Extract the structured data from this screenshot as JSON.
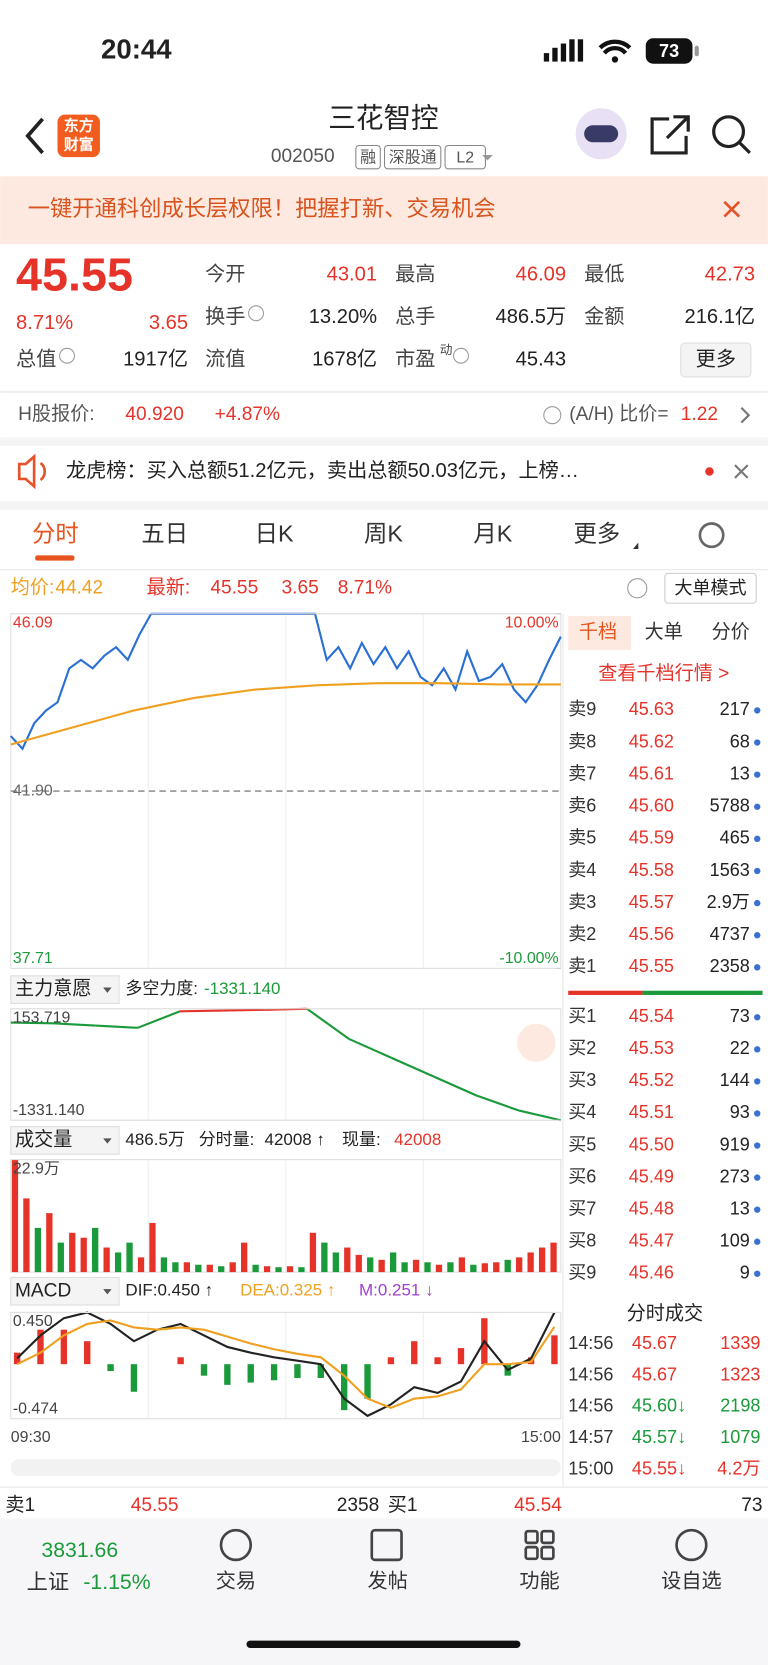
{
  "status": {
    "time": "20:44",
    "battery": "73"
  },
  "header": {
    "logo": [
      "东方",
      "财富"
    ],
    "title": "三花智控",
    "code": "002050",
    "tags": [
      "融",
      "深股通",
      "L2"
    ]
  },
  "banner": {
    "text": "一键开通科创成长层权限！把握打新、交易机会"
  },
  "quote": {
    "price": "45.55",
    "pct": "8.71%",
    "chg": "3.65",
    "more": "更多",
    "fields": [
      {
        "label": "今开",
        "value": "43.01",
        "color": "#e5332a"
      },
      {
        "label": "最高",
        "value": "46.09",
        "color": "#e5332a"
      },
      {
        "label": "最低",
        "value": "42.73",
        "color": "#e5332a"
      },
      {
        "label": "换手",
        "value": "13.20%"
      },
      {
        "label": "总手",
        "value": "486.5万"
      },
      {
        "label": "金额",
        "value": "216.1亿"
      },
      {
        "label": "总值",
        "value": "1917亿"
      },
      {
        "label": "流值",
        "value": "1678亿"
      },
      {
        "label": "市盈",
        "sup": "动",
        "value": "45.43"
      }
    ]
  },
  "hshare": {
    "label": "H股报价:",
    "price": "40.920",
    "pct": "+4.87%",
    "ratio_label": "(A/H) 比价=",
    "ratio": "1.22"
  },
  "news": {
    "text": "龙虎榜：买入总额51.2亿元，卖出总额50.03亿元，上榜…"
  },
  "tabs": [
    "分时",
    "五日",
    "日K",
    "周K",
    "月K",
    "更多"
  ],
  "chart_info": {
    "avg": "44.42",
    "last": "45.55",
    "chg": "3.65",
    "pct": "8.71%",
    "mode": "大单模式"
  },
  "chart_data": [
    {
      "type": "line",
      "ylim": [
        37.71,
        46.09
      ],
      "yticks": [
        46.09,
        {
          "value": 41.9,
          "label": "41.90"
        },
        37.71
      ],
      "y2lim": [
        -10,
        10
      ],
      "y2ticks": [
        {
          "value": 10,
          "label": "10.00%"
        },
        {
          "value": -10,
          "label": "-10.00%"
        }
      ],
      "xlabels": [
        "09:30",
        "15:00"
      ],
      "series": [
        {
          "name": "最新:",
          "color": "#2a6fd4",
          "values": [
            43.2,
            42.9,
            43.5,
            43.8,
            44.0,
            44.8,
            45.0,
            44.8,
            45.1,
            45.3,
            45.0,
            45.6,
            46.09,
            46.09,
            46.09,
            46.09,
            46.09,
            46.09,
            46.09,
            46.09,
            46.09,
            46.09,
            46.09,
            46.09,
            46.09,
            46.09,
            46.09,
            45.0,
            45.3,
            44.8,
            45.4,
            44.9,
            45.3,
            44.8,
            45.2,
            44.6,
            44.4,
            44.8,
            44.3,
            45.2,
            44.5,
            44.6,
            44.9,
            44.3,
            44.0,
            44.4,
            45.0,
            45.55
          ]
        },
        {
          "name": "均价:",
          "color": "#f0a020",
          "values": [
            43.0,
            43.4,
            43.8,
            44.1,
            44.3,
            44.4,
            44.45,
            44.45,
            44.42,
            44.42
          ]
        }
      ]
    },
    {
      "type": "line",
      "title": "主力意愿",
      "label": "多空力度:",
      "latest": "-1331.140",
      "ylim": [
        -1331.14,
        153.719
      ],
      "yticks": [
        153.719,
        {
          "value": -1331.14,
          "label": "-1331.140"
        }
      ],
      "series": [
        {
          "color": "#1a9a3a",
          "up_color": "#e5332a",
          "values": [
            -30,
            -40,
            -70,
            -100,
            120,
            130,
            140,
            153.719,
            -250,
            -500,
            -750,
            -1000,
            -1200,
            -1331.14
          ]
        }
      ]
    },
    {
      "type": "bar",
      "title": "成交量",
      "total": "486.5万",
      "label": "分时量:",
      "minute": "42008 ↑",
      "now_label": "现量:",
      "now": "42008",
      "ylim": [
        0,
        229000
      ],
      "yticks": [
        {
          "value": 229000,
          "label": "22.9万"
        }
      ],
      "up_color": "#e5332a",
      "down_color": "#1a9a3a",
      "values": [
        229000,
        150000,
        90000,
        120000,
        60000,
        80000,
        70000,
        90000,
        50000,
        40000,
        60000,
        30000,
        100000,
        30000,
        20000,
        20000,
        15000,
        15000,
        12000,
        20000,
        60000,
        15000,
        12000,
        10000,
        12000,
        10000,
        80000,
        60000,
        40000,
        50000,
        35000,
        30000,
        25000,
        40000,
        20000,
        25000,
        20000,
        15000,
        20000,
        30000,
        15000,
        18000,
        20000,
        25000,
        30000,
        40000,
        50000,
        60000
      ],
      "rising": [
        true,
        true,
        false,
        true,
        false,
        true,
        true,
        false,
        true,
        false,
        false,
        true,
        true,
        false,
        false,
        true,
        false,
        true,
        false,
        true,
        true,
        false,
        true,
        false,
        true,
        false,
        true,
        false,
        false,
        true,
        true,
        false,
        true,
        false,
        false,
        true,
        false,
        true,
        false,
        true,
        false,
        true,
        true,
        false,
        true,
        true,
        true,
        true
      ]
    },
    {
      "type": "macd",
      "title": "MACD",
      "ylim": [
        -0.474,
        0.45
      ],
      "yticks": [
        {
          "value": 0.45,
          "label": "0.450"
        },
        {
          "value": -0.474,
          "label": "-0.474"
        }
      ],
      "up_color": "#e5332a",
      "down_color": "#1a9a3a",
      "series": [
        {
          "name": "DIF:0.450 ↑",
          "color": "#222222",
          "values": [
            0.05,
            0.25,
            0.4,
            0.45,
            0.35,
            0.2,
            0.3,
            0.35,
            0.25,
            0.15,
            0.1,
            0.06,
            0.03,
            0.0,
            -0.3,
            -0.45,
            -0.35,
            -0.2,
            -0.25,
            -0.15,
            0.2,
            -0.05,
            0.05,
            0.45
          ]
        },
        {
          "name": "DEA:0.325 ↑",
          "color": "#f0a020",
          "values": [
            0.0,
            0.1,
            0.25,
            0.35,
            0.38,
            0.32,
            0.3,
            0.32,
            0.3,
            0.24,
            0.18,
            0.13,
            0.09,
            0.06,
            -0.1,
            -0.3,
            -0.38,
            -0.3,
            -0.28,
            -0.22,
            0.0,
            0.0,
            0.02,
            0.325
          ]
        },
        {
          "name": "M:0.251 ↓",
          "color": "#a040d0",
          "bars": true,
          "values": [
            0.1,
            0.3,
            0.3,
            0.2,
            -0.06,
            -0.24,
            0.0,
            0.06,
            -0.1,
            -0.18,
            -0.16,
            -0.14,
            -0.12,
            -0.12,
            -0.4,
            -0.3,
            0.06,
            0.2,
            0.06,
            0.14,
            0.4,
            -0.1,
            0.06,
            0.251
          ]
        }
      ]
    }
  ],
  "book": {
    "tabs": [
      "千档",
      "大单",
      "分价"
    ],
    "link": "查看千档行情 >",
    "sells": [
      [
        "卖9",
        "45.63",
        "217"
      ],
      [
        "卖8",
        "45.62",
        "68"
      ],
      [
        "卖7",
        "45.61",
        "13"
      ],
      [
        "卖6",
        "45.60",
        "5788"
      ],
      [
        "卖5",
        "45.59",
        "465"
      ],
      [
        "卖4",
        "45.58",
        "1563"
      ],
      [
        "卖3",
        "45.57",
        "2.9万"
      ],
      [
        "卖2",
        "45.56",
        "4737"
      ],
      [
        "卖1",
        "45.55",
        "2358"
      ]
    ],
    "buys": [
      [
        "买1",
        "45.54",
        "73"
      ],
      [
        "买2",
        "45.53",
        "22"
      ],
      [
        "买3",
        "45.52",
        "144"
      ],
      [
        "买4",
        "45.51",
        "93"
      ],
      [
        "买5",
        "45.50",
        "919"
      ],
      [
        "买6",
        "45.49",
        "273"
      ],
      [
        "买7",
        "45.48",
        "13"
      ],
      [
        "买8",
        "45.47",
        "109"
      ],
      [
        "买9",
        "45.46",
        "9"
      ]
    ]
  },
  "trades": {
    "title": "分时成交",
    "rows": [
      {
        "time": "14:56",
        "price": "45.67",
        "vol": "1339",
        "color": "#e5332a"
      },
      {
        "time": "14:56",
        "price": "45.67",
        "vol": "1323",
        "color": "#e5332a"
      },
      {
        "time": "14:56",
        "price": "45.60↓",
        "vol": "2198",
        "color": "#1a9a3a"
      },
      {
        "time": "14:57",
        "price": "45.57↓",
        "vol": "1079",
        "color": "#1a9a3a"
      },
      {
        "time": "15:00",
        "price": "45.55↓",
        "vol": "4.2万",
        "color": "#e5332a"
      }
    ]
  },
  "bottom": {
    "sell_label": "卖1",
    "sell_price": "45.55",
    "sell_vol": "2358",
    "buy_label": "买1",
    "buy_price": "45.54",
    "buy_vol": "73"
  },
  "footer": {
    "index_value": "3831.66",
    "index_name": "上证",
    "index_pct": "-1.15%",
    "nav": [
      "交易",
      "发帖",
      "功能",
      "设自选"
    ]
  }
}
